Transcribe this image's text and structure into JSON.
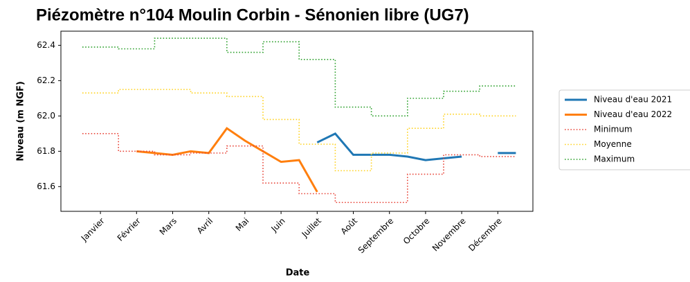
{
  "chart_data": {
    "type": "line",
    "title": "Piézomètre n°104 Moulin Corbin - Sénonien libre (UG7)",
    "xlabel": "Date",
    "ylabel": "Niveau (m NGF)",
    "categories": [
      null,
      "Janvier",
      null,
      "Février",
      null,
      "Mars",
      null,
      "Avril",
      null,
      "Mai",
      null,
      "Juin",
      null,
      "Juillet",
      null,
      "Août",
      null,
      "Septembre",
      null,
      "Octobre",
      null,
      "Novembre",
      null,
      "Décembre",
      null
    ],
    "series": [
      {
        "name": "Niveau d'eau 2021",
        "color": "#1f77b4",
        "linestyle": "solid",
        "drawstyle": "default",
        "values": [
          null,
          null,
          null,
          null,
          null,
          null,
          null,
          null,
          null,
          null,
          null,
          null,
          null,
          61.85,
          61.9,
          61.78,
          61.78,
          61.78,
          61.77,
          61.75,
          61.76,
          61.77,
          null,
          61.79,
          61.79
        ]
      },
      {
        "name": "Niveau d'eau 2022",
        "color": "#ff7f0e",
        "linestyle": "solid",
        "drawstyle": "default",
        "values": [
          null,
          null,
          null,
          61.8,
          61.79,
          61.78,
          61.8,
          61.79,
          61.93,
          61.86,
          61.8,
          61.74,
          61.75,
          61.57,
          null,
          null,
          null,
          null,
          null,
          null,
          null,
          null,
          null,
          null,
          null
        ]
      },
      {
        "name": "Minimum",
        "color": "#e8463a",
        "linestyle": "dotted",
        "drawstyle": "steps-post",
        "values": [
          61.9,
          61.9,
          61.8,
          61.8,
          61.78,
          61.78,
          61.79,
          61.79,
          61.83,
          61.83,
          61.62,
          61.62,
          61.56,
          61.56,
          61.51,
          61.51,
          61.51,
          61.51,
          61.67,
          61.67,
          61.78,
          61.78,
          61.77,
          61.77,
          61.77
        ]
      },
      {
        "name": "Moyenne",
        "color": "#ffd21f",
        "linestyle": "dotted",
        "drawstyle": "steps-post",
        "values": [
          62.13,
          62.13,
          62.15,
          62.15,
          62.15,
          62.15,
          62.13,
          62.13,
          62.11,
          62.11,
          61.98,
          61.98,
          61.84,
          61.84,
          61.69,
          61.69,
          61.79,
          61.79,
          61.93,
          61.93,
          62.01,
          62.01,
          62.0,
          62.0,
          62.0
        ]
      },
      {
        "name": "Maximum",
        "color": "#2ca02c",
        "linestyle": "dotted",
        "drawstyle": "steps-post",
        "values": [
          62.39,
          62.39,
          62.38,
          62.38,
          62.44,
          62.44,
          62.44,
          62.44,
          62.36,
          62.36,
          62.42,
          62.42,
          62.32,
          62.32,
          62.05,
          62.05,
          62.0,
          62.0,
          62.1,
          62.1,
          62.14,
          62.14,
          62.17,
          62.17,
          62.17
        ]
      }
    ],
    "ylim": [
      61.46,
      62.48
    ],
    "yticks": [
      61.6,
      61.8,
      {
        "value": 62,
        "label": "62.0"
      },
      62.2,
      62.4
    ],
    "grid": false,
    "legend": "outside right"
  }
}
